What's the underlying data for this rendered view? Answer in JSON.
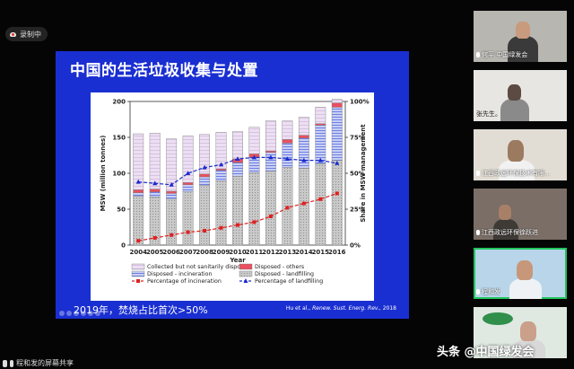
{
  "recording": {
    "label": "录制中"
  },
  "share": {
    "label": "程和发的屏幕共享"
  },
  "watermark": "头条 @中国绿发会",
  "slide": {
    "title": "中国的生活垃圾收集与处置",
    "caption": "2019年，焚烧占比首次>50%",
    "citation_authors": "Hu et al.,",
    "citation_journal": "Renew. Sust. Energ. Rev.,",
    "citation_year": "2018"
  },
  "participants": [
    {
      "label": "何平  中国绿发会",
      "active": false,
      "has_mic": true
    },
    {
      "label": "张先生。",
      "active": false,
      "has_mic": false
    },
    {
      "label": "江西政远环保技术有限...",
      "active": false,
      "has_mic": true
    },
    {
      "label": "江西政远环保徐跃进",
      "active": false,
      "has_mic": true
    },
    {
      "label": "程和发",
      "active": true,
      "has_mic": true
    },
    {
      "label": "",
      "active": false,
      "has_mic": false
    }
  ],
  "chart_data": {
    "type": "bar",
    "categories": [
      "2004",
      "2005",
      "2006",
      "2007",
      "2008",
      "2009",
      "2010",
      "2011",
      "2012",
      "2013",
      "2014",
      "2015",
      "2016"
    ],
    "stack": {
      "landfilling": [
        68,
        67,
        64,
        74,
        83,
        89,
        96,
        101,
        103,
        108,
        107,
        113,
        118
      ],
      "incineration": [
        5,
        7,
        8,
        10,
        12,
        15,
        19,
        21,
        26,
        34,
        42,
        54,
        74
      ],
      "others": [
        4,
        4,
        3,
        3,
        4,
        2,
        5,
        5,
        2,
        5,
        4,
        2,
        6
      ],
      "collected_not_sanitarily": [
        78,
        78,
        73,
        65,
        55,
        51,
        38,
        37,
        42,
        26,
        25,
        23,
        5
      ]
    },
    "incineration_pct": [
      3,
      5,
      7,
      9,
      10,
      12,
      14,
      16,
      20,
      26,
      29,
      32,
      36
    ],
    "landfilling_pct": [
      44,
      43,
      42,
      50,
      54,
      56,
      60,
      61,
      61,
      60,
      59,
      59,
      57
    ],
    "ylabel": "MSW (million tonnes)",
    "y2label": "Share in MSW management",
    "xlabel": "Year",
    "ylim": [
      0,
      200
    ],
    "y_ticks": [
      "0",
      "50",
      "100",
      "150",
      "200"
    ],
    "y2_ticks": [
      "0%",
      "25%",
      "50%",
      "75%",
      "100%"
    ],
    "legend": [
      "Collected but not sanitarily disposed",
      "Disposed - others",
      "Disposed - incineration",
      "Disposed - landfilling",
      "Percentage of incineration",
      "Percentage of landfilling"
    ],
    "colors": {
      "landfilling": "#c9c9c9",
      "incineration": "#6e7fe0",
      "others": "#e85060",
      "collected": "#ecdff2",
      "incineration_pct": "#e02020",
      "landfilling_pct": "#1a2acc"
    }
  }
}
